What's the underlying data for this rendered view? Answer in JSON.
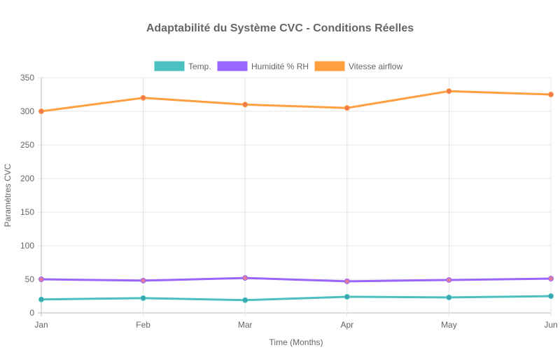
{
  "chart_data": {
    "type": "line",
    "title": "Adaptabilité du Système CVC - Conditions Réelles",
    "xlabel": "Time (Months)",
    "ylabel": "Paramètres CVC",
    "categories": [
      "Jan",
      "Feb",
      "Mar",
      "Apr",
      "May",
      "Jun"
    ],
    "ylim": [
      0,
      350
    ],
    "yticks": [
      0,
      50,
      100,
      150,
      200,
      250,
      300,
      350
    ],
    "grid": true,
    "legend_position": "top",
    "series": [
      {
        "name": "Temp.",
        "color": "#4bc0c0",
        "point_color": "#3aa8b0",
        "values": [
          20,
          22,
          19,
          24,
          23,
          25
        ]
      },
      {
        "name": "Humidité % RH",
        "color": "#9966ff",
        "point_color": "#e07a9a",
        "values": [
          50,
          48,
          52,
          47,
          49,
          51
        ]
      },
      {
        "name": "Vitesse airflow",
        "color": "#ff9f40",
        "point_color": "#f07a50",
        "values": [
          300,
          320,
          310,
          305,
          330,
          325
        ]
      }
    ]
  }
}
